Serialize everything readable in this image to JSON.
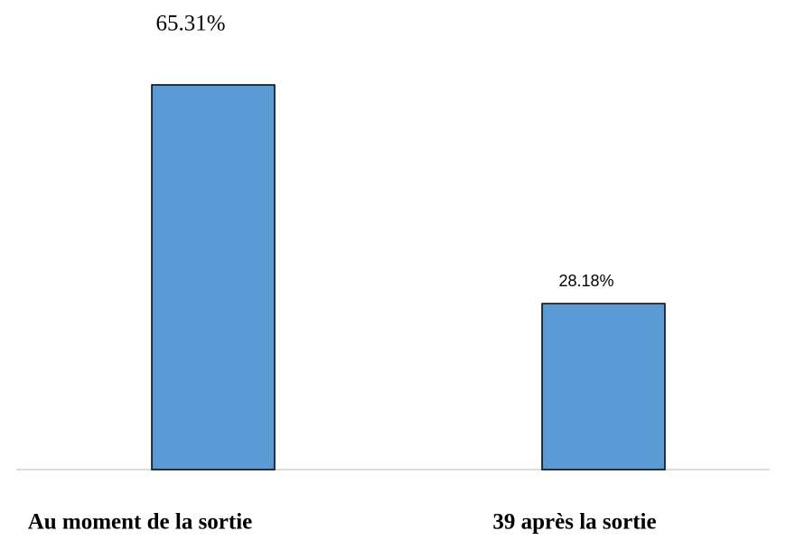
{
  "chart_data": {
    "type": "bar",
    "categories": [
      "Au moment de la sortie",
      "39 après la sortie"
    ],
    "values": [
      65.31,
      28.18
    ],
    "value_labels": [
      "65.31%",
      "28.18%"
    ],
    "color": "#5b9bd5"
  }
}
